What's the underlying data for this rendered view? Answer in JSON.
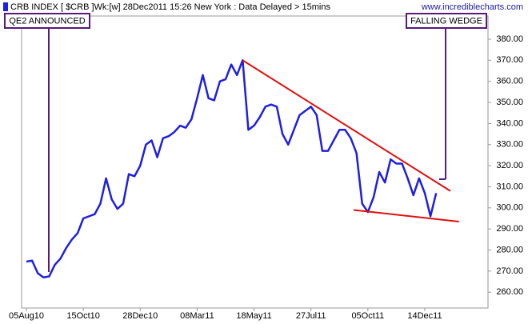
{
  "chart_data": {
    "type": "line",
    "title": "CRB INDEX [ $CRB ]Wk:[w]  28Dec2011 15:26 New York  : Data Delayed > 15mins",
    "source": "www.incrediblecharts.com",
    "annotations": [
      "QE2 ANNOUNCED",
      "FALLING WEDGE"
    ],
    "categories": [
      "05Aug10",
      null,
      null,
      null,
      null,
      null,
      null,
      null,
      null,
      null,
      "15Oct10",
      null,
      null,
      null,
      null,
      null,
      null,
      null,
      null,
      null,
      "28Dec10",
      null,
      null,
      null,
      null,
      null,
      null,
      null,
      null,
      null,
      "08Mar11",
      null,
      null,
      null,
      null,
      null,
      null,
      null,
      null,
      null,
      "18May11",
      null,
      null,
      null,
      null,
      null,
      null,
      null,
      null,
      null,
      "27Jul11",
      null,
      null,
      null,
      null,
      null,
      null,
      null,
      null,
      null,
      "05Oct11",
      null,
      null,
      null,
      null,
      null,
      null,
      null,
      null,
      null,
      "14Dec11",
      null,
      null
    ],
    "series": [
      {
        "name": "CRB INDEX",
        "color": "#1f1fe0",
        "values": [
          274.5,
          275,
          269,
          267,
          267.5,
          273,
          276,
          281,
          285,
          288,
          295,
          296,
          297,
          302,
          314,
          304,
          299.5,
          302,
          316,
          315,
          320,
          330,
          332,
          324,
          333,
          334,
          336,
          339,
          338,
          342,
          352,
          363,
          352,
          351,
          360,
          361,
          368,
          363,
          370,
          337,
          339,
          343,
          348,
          349,
          348,
          335,
          330,
          337,
          344,
          346,
          348,
          344,
          327,
          327,
          332,
          337,
          337,
          333,
          326,
          302,
          298,
          305,
          317,
          312,
          323,
          321,
          321,
          314,
          306,
          314,
          307,
          296,
          307
        ]
      }
    ],
    "trendlines": [
      {
        "color": "#e01010",
        "x": [
          38,
          74.5
        ],
        "values": [
          370,
          308
        ]
      },
      {
        "color": "#e01010",
        "x": [
          57.5,
          76
        ],
        "values": [
          299,
          293.5
        ]
      }
    ],
    "ylim": [
      252.5,
      391
    ],
    "yticks": [
      {
        "value": 260,
        "label": "260.00"
      },
      {
        "value": 270,
        "label": "270.00"
      },
      {
        "value": 280,
        "label": "280.00"
      },
      {
        "value": 290,
        "label": "290.00"
      },
      {
        "value": 300,
        "label": "300.00"
      },
      {
        "value": 310,
        "label": "310.00"
      },
      {
        "value": 320,
        "label": "320.00"
      },
      {
        "value": 330,
        "label": "330.00"
      },
      {
        "value": 340,
        "label": "340.00"
      },
      {
        "value": 350,
        "label": "350.00"
      },
      {
        "value": 360,
        "label": "360.00"
      },
      {
        "value": 370,
        "label": "370.00"
      },
      {
        "value": 380,
        "label": "380.00"
      }
    ],
    "grid": false
  }
}
